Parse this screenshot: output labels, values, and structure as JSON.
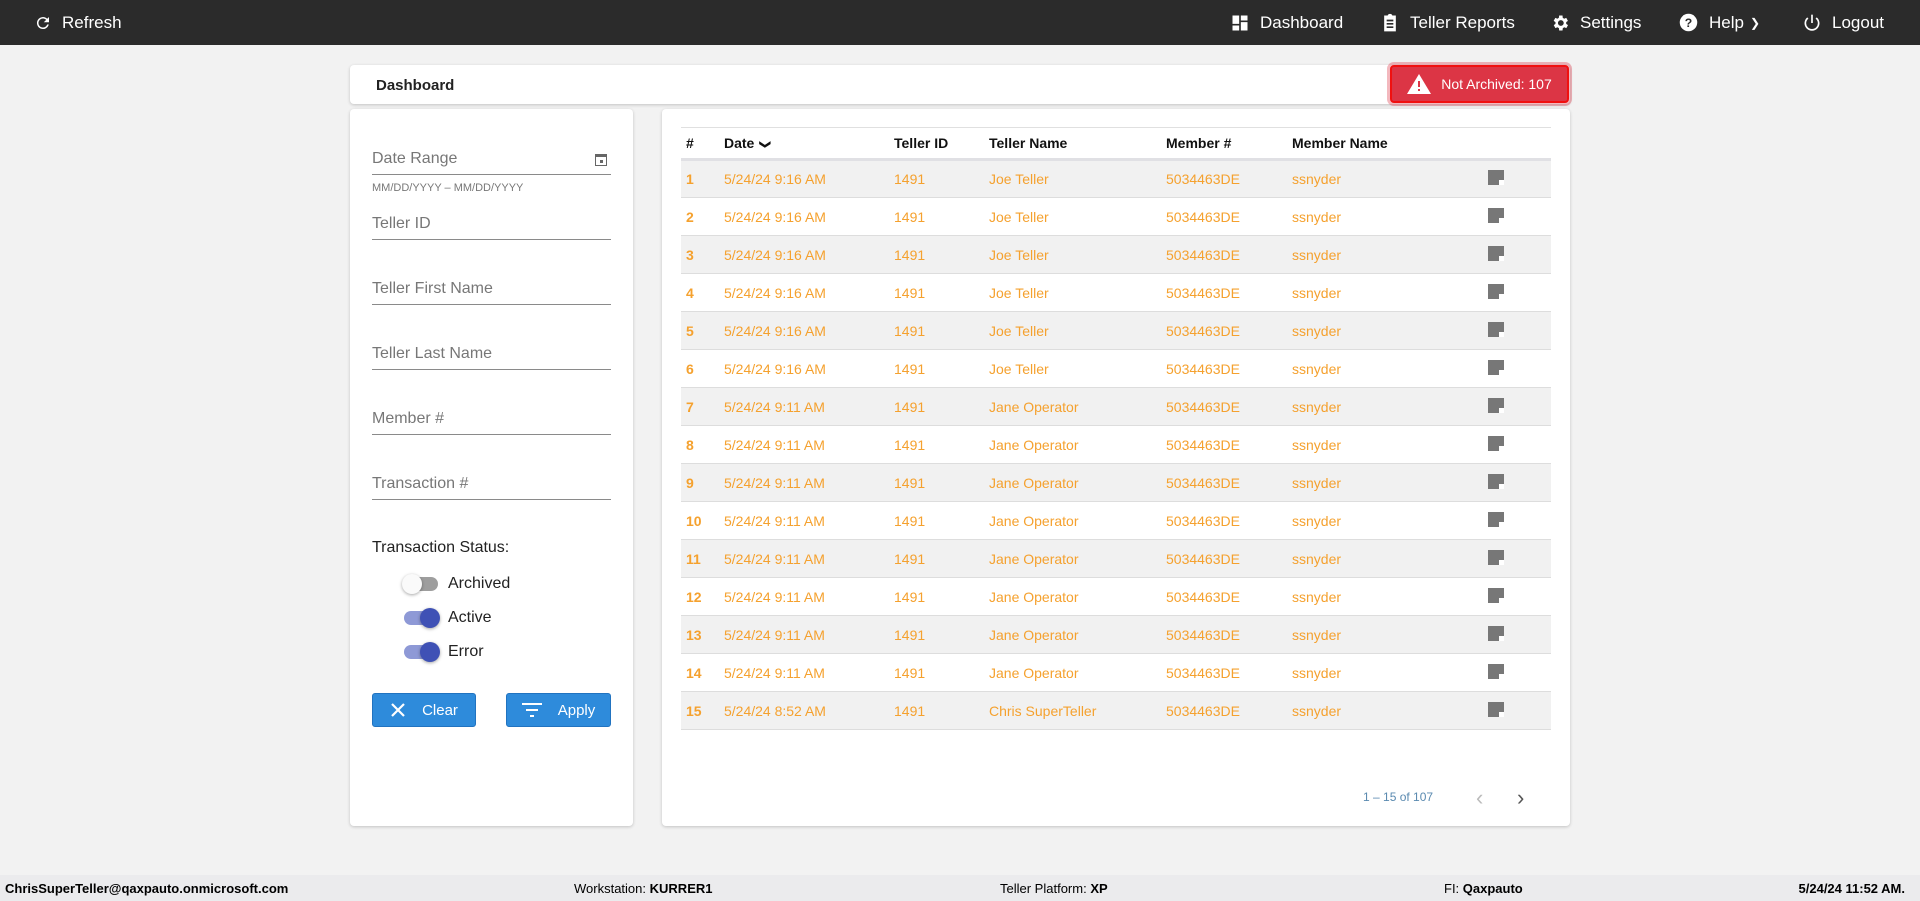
{
  "topbar": {
    "refresh": "Refresh",
    "dashboard": "Dashboard",
    "teller_reports": "Teller Reports",
    "settings": "Settings",
    "help": "Help",
    "logout": "Logout"
  },
  "header": {
    "title": "Dashboard",
    "badge": "Not Archived: 107",
    "badge_color": "#dc3545"
  },
  "filters": {
    "date_range": "Date Range",
    "date_hint": "MM/DD/YYYY – MM/DD/YYYY",
    "teller_id": "Teller ID",
    "teller_first": "Teller First Name",
    "teller_last": "Teller Last Name",
    "member": "Member #",
    "transaction": "Transaction #",
    "status_label": "Transaction Status:",
    "toggles": [
      {
        "label": "Archived",
        "on": false
      },
      {
        "label": "Active",
        "on": true
      },
      {
        "label": "Error",
        "on": true
      }
    ],
    "clear": "Clear",
    "apply": "Apply"
  },
  "table": {
    "columns": [
      "#",
      "Date",
      "Teller ID",
      "Teller Name",
      "Member #",
      "Member Name"
    ],
    "text_color": "#f5a12e",
    "rows": [
      [
        "1",
        "5/24/24 9:16 AM",
        "1491",
        "Joe Teller",
        "5034463DE",
        "ssnyder"
      ],
      [
        "2",
        "5/24/24 9:16 AM",
        "1491",
        "Joe Teller",
        "5034463DE",
        "ssnyder"
      ],
      [
        "3",
        "5/24/24 9:16 AM",
        "1491",
        "Joe Teller",
        "5034463DE",
        "ssnyder"
      ],
      [
        "4",
        "5/24/24 9:16 AM",
        "1491",
        "Joe Teller",
        "5034463DE",
        "ssnyder"
      ],
      [
        "5",
        "5/24/24 9:16 AM",
        "1491",
        "Joe Teller",
        "5034463DE",
        "ssnyder"
      ],
      [
        "6",
        "5/24/24 9:16 AM",
        "1491",
        "Joe Teller",
        "5034463DE",
        "ssnyder"
      ],
      [
        "7",
        "5/24/24 9:11 AM",
        "1491",
        "Jane Operator",
        "5034463DE",
        "ssnyder"
      ],
      [
        "8",
        "5/24/24 9:11 AM",
        "1491",
        "Jane Operator",
        "5034463DE",
        "ssnyder"
      ],
      [
        "9",
        "5/24/24 9:11 AM",
        "1491",
        "Jane Operator",
        "5034463DE",
        "ssnyder"
      ],
      [
        "10",
        "5/24/24 9:11 AM",
        "1491",
        "Jane Operator",
        "5034463DE",
        "ssnyder"
      ],
      [
        "11",
        "5/24/24 9:11 AM",
        "1491",
        "Jane Operator",
        "5034463DE",
        "ssnyder"
      ],
      [
        "12",
        "5/24/24 9:11 AM",
        "1491",
        "Jane Operator",
        "5034463DE",
        "ssnyder"
      ],
      [
        "13",
        "5/24/24 9:11 AM",
        "1491",
        "Jane Operator",
        "5034463DE",
        "ssnyder"
      ],
      [
        "14",
        "5/24/24 9:11 AM",
        "1491",
        "Jane Operator",
        "5034463DE",
        "ssnyder"
      ],
      [
        "15",
        "5/24/24 8:52 AM",
        "1491",
        "Chris SuperTeller",
        "5034463DE",
        "ssnyder"
      ]
    ],
    "pagination": "1 – 15 of 107"
  },
  "footer": {
    "user": "ChrisSuperTeller@qaxpauto.onmicrosoft.com",
    "workstation_label": "Workstation:",
    "workstation": "KURRER1",
    "platform_label": "Teller Platform:",
    "platform": "XP",
    "fi_label": "FI:",
    "fi": "Qaxpauto",
    "datetime": "5/24/24 11:52 AM."
  }
}
